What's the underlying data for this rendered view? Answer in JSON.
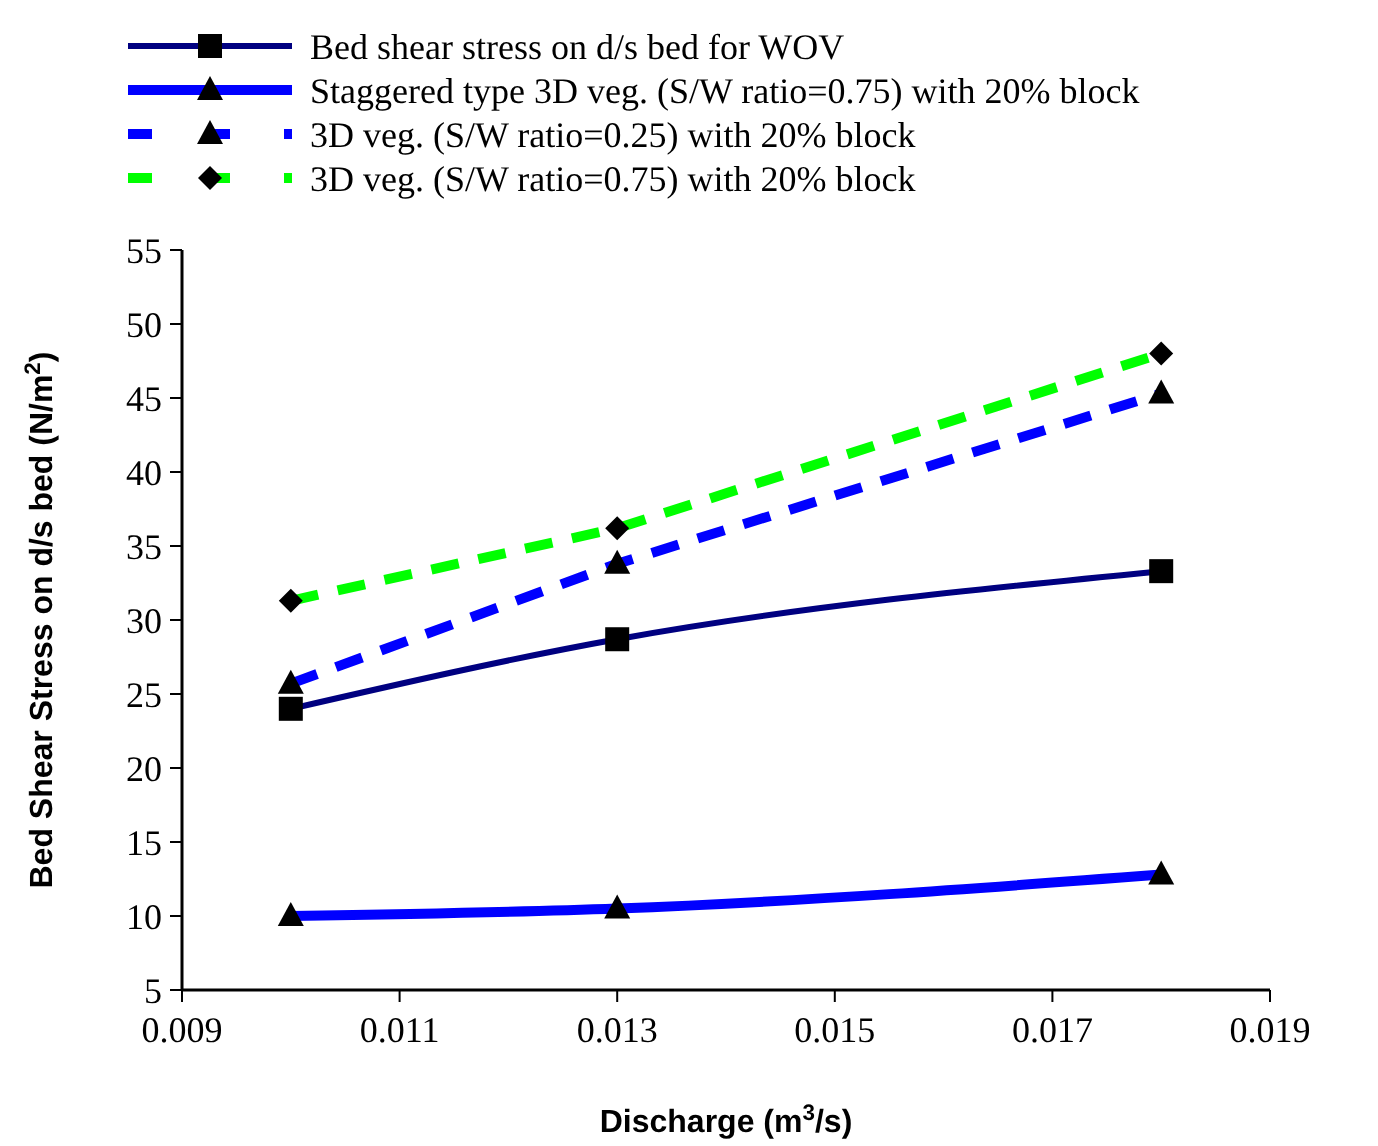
{
  "chart_data": {
    "type": "line",
    "xlabel": "Discharge (m$^{3}$/s)",
    "ylabel": "Bed Shear Stress on d/s bed (N/m$^{2}$)",
    "x": [
      0.01,
      0.013,
      0.018
    ],
    "xlim": [
      0.009,
      0.019
    ],
    "xticks": [
      {
        "value": 0.009,
        "label": "0.009"
      },
      {
        "value": 0.011,
        "label": "0.011"
      },
      {
        "value": 0.013,
        "label": "0.013"
      },
      {
        "value": 0.015,
        "label": "0.015"
      },
      {
        "value": 0.017,
        "label": "0.017"
      },
      {
        "value": 0.019,
        "label": "0.019"
      }
    ],
    "ylim": [
      5,
      55
    ],
    "yticks": [
      5,
      10,
      15,
      20,
      25,
      30,
      35,
      40,
      45,
      50,
      55
    ],
    "grid": false,
    "legend": "top",
    "series": [
      {
        "name": "Bed shear stress on d/s bed for WOV",
        "color": "#000080",
        "values": [
          24.0,
          28.7,
          33.3
        ],
        "marker": "square",
        "line_style": "solid"
      },
      {
        "name": "Staggered type 3D veg. (S/W ratio=0.75) with 20% block",
        "color": "#0000ff",
        "values": [
          10.0,
          10.5,
          12.8
        ],
        "marker": "triangle",
        "line_style": "solid"
      },
      {
        "name": "3D veg. (S/W ratio=0.25) with 20% block",
        "color": "#0000ff",
        "values": [
          25.7,
          33.8,
          45.3
        ],
        "marker": "triangle",
        "line_style": "dashed"
      },
      {
        "name": "3D veg. (S/W ratio=0.75) with 20% block",
        "color": "#00ff00",
        "values": [
          31.3,
          36.2,
          48.0
        ],
        "marker": "diamond",
        "line_style": "dashed"
      }
    ]
  }
}
